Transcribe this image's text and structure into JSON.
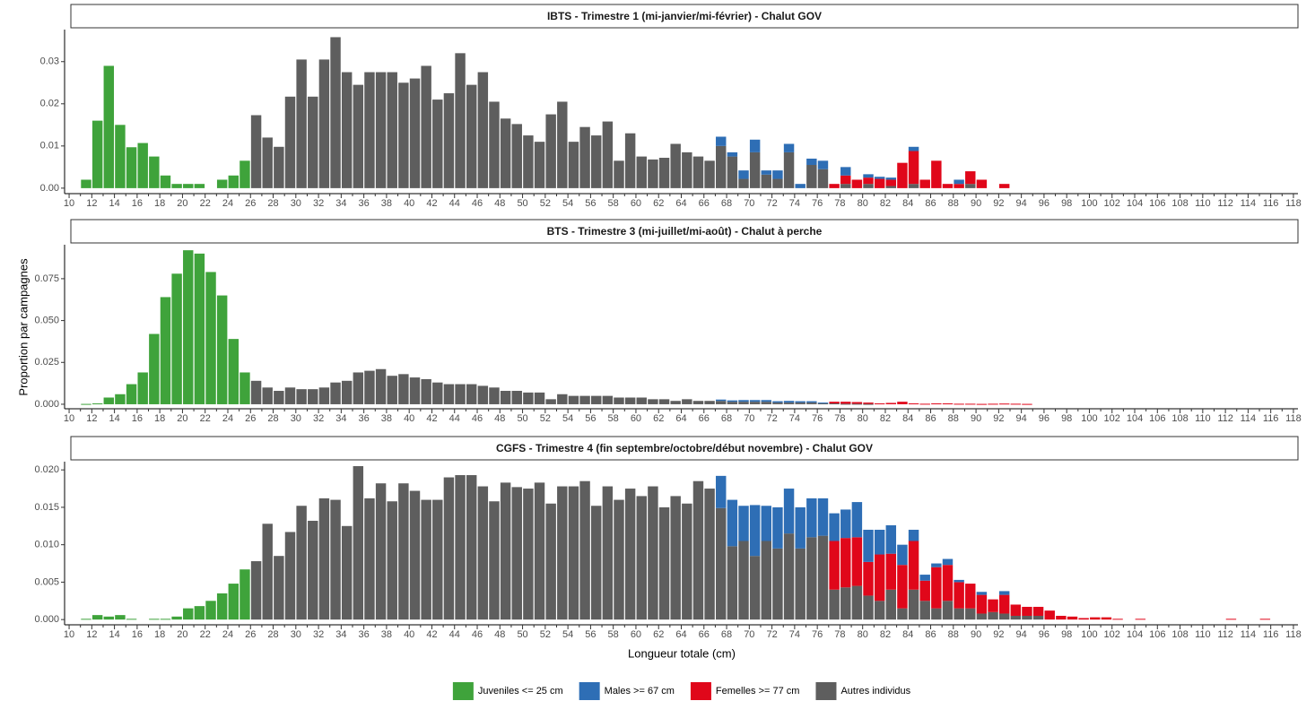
{
  "chart_data": [
    {
      "type": "bar",
      "title": "IBTS - Trimestre 1 (mi-janvier/mi-février) - Chalut GOV",
      "xlim": [
        9.6,
        118.4
      ],
      "xticks": [
        10,
        12,
        14,
        16,
        18,
        20,
        22,
        24,
        26,
        28,
        30,
        32,
        34,
        36,
        38,
        40,
        42,
        44,
        46,
        48,
        50,
        52,
        54,
        56,
        58,
        60,
        62,
        64,
        66,
        68,
        70,
        72,
        74,
        76,
        78,
        80,
        82,
        84,
        86,
        88,
        90,
        92,
        94,
        96,
        98,
        100,
        102,
        104,
        106,
        108,
        110,
        112,
        114,
        116,
        118
      ],
      "ylim": [
        -0.0013,
        0.0376
      ],
      "yticks": [
        {
          "value": 0,
          "label": "0.00"
        },
        {
          "value": 0.01,
          "label": "0.01"
        },
        {
          "value": 0.02,
          "label": "0.02"
        },
        {
          "value": 0.03,
          "label": "0.03"
        }
      ],
      "series": [
        {
          "color": "#3fa33b",
          "x": [
            11,
            12,
            13,
            14,
            15,
            16,
            17,
            18,
            19,
            20,
            21,
            22,
            23,
            24,
            25
          ],
          "values": [
            0.002,
            0.016,
            0.029,
            0.015,
            0.0097,
            0.0107,
            0.0075,
            0.003,
            0.001,
            0.001,
            0.001,
            0,
            0.002,
            0.003,
            0.0065
          ]
        },
        {
          "color": "#2e6eb5",
          "x": [
            67,
            68,
            69,
            70,
            71,
            72,
            73,
            74,
            75,
            76,
            78,
            80,
            81,
            82,
            84,
            88
          ],
          "values": [
            0.0022,
            0.001,
            0.002,
            0.003,
            0.001,
            0.002,
            0.002,
            0.001,
            0.0015,
            0.002,
            0.002,
            0.0008,
            0.0005,
            0.0005,
            0.001,
            0.001
          ]
        },
        {
          "color": "#e0071a",
          "x": [
            77,
            78,
            79,
            80,
            81,
            82,
            83,
            84,
            85,
            86,
            87,
            88,
            89,
            90,
            92
          ],
          "values": [
            0.001,
            0.002,
            0.002,
            0.0015,
            0.0022,
            0.0015,
            0.006,
            0.0078,
            0.002,
            0.0065,
            0.001,
            0.001,
            0.003,
            0.002,
            0.001
          ]
        },
        {
          "color": "#5e5e5e",
          "x": [
            26,
            27,
            28,
            29,
            30,
            31,
            32,
            33,
            34,
            35,
            36,
            37,
            38,
            39,
            40,
            41,
            42,
            43,
            44,
            45,
            46,
            47,
            48,
            49,
            50,
            51,
            52,
            53,
            54,
            55,
            56,
            57,
            58,
            59,
            60,
            61,
            62,
            63,
            64,
            65,
            66,
            67,
            68,
            69,
            70,
            71,
            72,
            73,
            74,
            75,
            76,
            77,
            78,
            79,
            80,
            81,
            82,
            83,
            84,
            85,
            86,
            87,
            88,
            89,
            90
          ],
          "values": [
            0.0173,
            0.012,
            0.0098,
            0.0217,
            0.0305,
            0.0217,
            0.0305,
            0.0358,
            0.0275,
            0.0245,
            0.0275,
            0.0275,
            0.0275,
            0.025,
            0.026,
            0.029,
            0.021,
            0.0225,
            0.032,
            0.0245,
            0.0275,
            0.0205,
            0.0165,
            0.0152,
            0.0125,
            0.011,
            0.0175,
            0.0205,
            0.011,
            0.0145,
            0.0125,
            0.0158,
            0.0065,
            0.013,
            0.0075,
            0.0068,
            0.0072,
            0.0105,
            0.0085,
            0.0075,
            0.0065,
            0.01,
            0.0075,
            0.0022,
            0.0085,
            0.0032,
            0.0022,
            0.0085,
            0,
            0.0055,
            0.0045,
            0,
            0.001,
            0,
            0.001,
            0,
            0.0005,
            0,
            0.001,
            0,
            0,
            0,
            0,
            0.001,
            0
          ]
        }
      ]
    },
    {
      "type": "bar",
      "title": "BTS - Trimestre 3 (mi-juillet/mi-août) - Chalut à perche",
      "y_label": "Proportion par campagnes",
      "xlim": [
        9.6,
        118.4
      ],
      "xticks": [
        10,
        12,
        14,
        16,
        18,
        20,
        22,
        24,
        26,
        28,
        30,
        32,
        34,
        36,
        38,
        40,
        42,
        44,
        46,
        48,
        50,
        52,
        54,
        56,
        58,
        60,
        62,
        64,
        66,
        68,
        70,
        72,
        74,
        76,
        78,
        80,
        82,
        84,
        86,
        88,
        90,
        92,
        94,
        96,
        98,
        100,
        102,
        104,
        106,
        108,
        110,
        112,
        114,
        116,
        118
      ],
      "ylim": [
        -0.0027,
        0.0953
      ],
      "yticks": [
        {
          "value": 0,
          "label": "0.000"
        },
        {
          "value": 0.025,
          "label": "0.025"
        },
        {
          "value": 0.05,
          "label": "0.050"
        },
        {
          "value": 0.075,
          "label": "0.075"
        }
      ],
      "series": [
        {
          "color": "#3fa33b",
          "x": [
            11,
            12,
            13,
            14,
            15,
            16,
            17,
            18,
            19,
            20,
            21,
            22,
            23,
            24,
            25
          ],
          "values": [
            0.0002,
            0.0005,
            0.004,
            0.006,
            0.012,
            0.019,
            0.042,
            0.064,
            0.078,
            0.092,
            0.09,
            0.079,
            0.065,
            0.039,
            0.019
          ]
        },
        {
          "color": "#2e6eb5",
          "x": [
            67,
            68,
            69,
            70,
            71,
            72,
            73,
            74,
            75,
            76
          ],
          "values": [
            0.0008,
            0.0008,
            0.001,
            0.001,
            0.001,
            0.0008,
            0.001,
            0.0008,
            0.0008,
            0.0005
          ]
        },
        {
          "color": "#e0071a",
          "x": [
            77,
            78,
            79,
            80,
            81,
            82,
            83,
            84,
            85,
            86,
            87,
            88,
            89,
            90,
            91,
            92,
            93,
            94
          ],
          "values": [
            0.001,
            0.0012,
            0.001,
            0.0008,
            0.0005,
            0.0008,
            0.0015,
            0.0005,
            0.0003,
            0.0005,
            0.0005,
            0.0003,
            0.0003,
            0.0002,
            0.0003,
            0.0004,
            0.0003,
            0.0002
          ]
        },
        {
          "color": "#5e5e5e",
          "x": [
            26,
            27,
            28,
            29,
            30,
            31,
            32,
            33,
            34,
            35,
            36,
            37,
            38,
            39,
            40,
            41,
            42,
            43,
            44,
            45,
            46,
            47,
            48,
            49,
            50,
            51,
            52,
            53,
            54,
            55,
            56,
            57,
            58,
            59,
            60,
            61,
            62,
            63,
            64,
            65,
            66,
            67,
            68,
            69,
            70,
            71,
            72,
            73,
            74,
            75,
            76,
            77,
            78,
            79,
            80
          ],
          "values": [
            0.014,
            0.01,
            0.008,
            0.01,
            0.009,
            0.009,
            0.01,
            0.013,
            0.014,
            0.019,
            0.02,
            0.021,
            0.017,
            0.018,
            0.016,
            0.015,
            0.013,
            0.012,
            0.012,
            0.012,
            0.011,
            0.01,
            0.008,
            0.008,
            0.007,
            0.007,
            0.003,
            0.006,
            0.005,
            0.005,
            0.005,
            0.005,
            0.004,
            0.004,
            0.004,
            0.003,
            0.003,
            0.002,
            0.003,
            0.002,
            0.002,
            0.002,
            0.0015,
            0.0015,
            0.0015,
            0.0015,
            0.001,
            0.001,
            0.001,
            0.001,
            0.0005,
            0.0005,
            0.0003,
            0.0003,
            0.0002
          ]
        }
      ]
    },
    {
      "type": "bar",
      "title": "CGFS - Trimestre 4 (fin septembre/octobre/début novembre) - Chalut GOV",
      "x_label": "Longueur totale (cm)",
      "xlim": [
        9.6,
        118.4
      ],
      "xticks": [
        10,
        12,
        14,
        16,
        18,
        20,
        22,
        24,
        26,
        28,
        30,
        32,
        34,
        36,
        38,
        40,
        42,
        44,
        46,
        48,
        50,
        52,
        54,
        56,
        58,
        60,
        62,
        64,
        66,
        68,
        70,
        72,
        74,
        76,
        78,
        80,
        82,
        84,
        86,
        88,
        90,
        92,
        94,
        96,
        98,
        100,
        102,
        104,
        106,
        108,
        110,
        112,
        114,
        116,
        118
      ],
      "ylim": [
        -0.0007,
        0.0211
      ],
      "yticks": [
        {
          "value": 0,
          "label": "0.000"
        },
        {
          "value": 0.005,
          "label": "0.005"
        },
        {
          "value": 0.01,
          "label": "0.010"
        },
        {
          "value": 0.015,
          "label": "0.015"
        },
        {
          "value": 0.02,
          "label": "0.020"
        }
      ],
      "series": [
        {
          "name": "Juveniles <= 25 cm",
          "color": "#3fa33b",
          "x": [
            11,
            12,
            13,
            14,
            15,
            16,
            17,
            18,
            19,
            20,
            21,
            22,
            23,
            24,
            25
          ],
          "values": [
            0.0001,
            0.0006,
            0.0004,
            0.0006,
            0.0001,
            0,
            0.0001,
            0.0001,
            0.0004,
            0.0015,
            0.0018,
            0.0025,
            0.0035,
            0.0048,
            0.0067
          ]
        },
        {
          "name": "Males >= 67 cm",
          "color": "#2e6eb5",
          "x": [
            67,
            68,
            69,
            70,
            71,
            72,
            73,
            74,
            75,
            76,
            77,
            78,
            79,
            80,
            81,
            82,
            83,
            84,
            85,
            86,
            87,
            88,
            89,
            90,
            91,
            92
          ],
          "values": [
            0.0043,
            0.0062,
            0.0047,
            0.0068,
            0.0047,
            0.0055,
            0.006,
            0.0055,
            0.0052,
            0.005,
            0.0037,
            0.0038,
            0.0047,
            0.0043,
            0.0033,
            0.0038,
            0.0027,
            0.0015,
            0.0008,
            0.0005,
            0.0008,
            0.0003,
            0,
            0.0004,
            0,
            0.0005
          ]
        },
        {
          "name": "Femelles >= 77 cm",
          "color": "#e0071a",
          "x": [
            77,
            78,
            79,
            80,
            81,
            82,
            83,
            84,
            85,
            86,
            87,
            88,
            89,
            90,
            91,
            92,
            93,
            94,
            95,
            96,
            97,
            98,
            99,
            100,
            101,
            102,
            104,
            112,
            115
          ],
          "values": [
            0.0065,
            0.0066,
            0.0065,
            0.0045,
            0.0062,
            0.0048,
            0.0058,
            0.0065,
            0.0027,
            0.0055,
            0.0048,
            0.0035,
            0.0033,
            0.0025,
            0.0017,
            0.0025,
            0.0015,
            0.0012,
            0.0012,
            0.0012,
            0.0005,
            0.0004,
            0.0002,
            0.0003,
            0.0003,
            0.0001,
            0.0001,
            0.0001,
            0.0001
          ]
        },
        {
          "name": "Autres individus",
          "color": "#5e5e5e",
          "x": [
            26,
            27,
            28,
            29,
            30,
            31,
            32,
            33,
            34,
            35,
            36,
            37,
            38,
            39,
            40,
            41,
            42,
            43,
            44,
            45,
            46,
            47,
            48,
            49,
            50,
            51,
            52,
            53,
            54,
            55,
            56,
            57,
            58,
            59,
            60,
            61,
            62,
            63,
            64,
            65,
            66,
            67,
            68,
            69,
            70,
            71,
            72,
            73,
            74,
            75,
            76,
            77,
            78,
            79,
            80,
            81,
            82,
            83,
            84,
            85,
            86,
            87,
            88,
            89,
            90,
            91,
            92,
            93,
            94,
            95
          ],
          "values": [
            0.0078,
            0.0128,
            0.0085,
            0.0117,
            0.0152,
            0.0132,
            0.0162,
            0.016,
            0.0125,
            0.0205,
            0.0162,
            0.0182,
            0.0158,
            0.0182,
            0.0172,
            0.016,
            0.016,
            0.019,
            0.0193,
            0.0193,
            0.0178,
            0.0158,
            0.0183,
            0.0177,
            0.0175,
            0.0183,
            0.0155,
            0.0178,
            0.0178,
            0.0185,
            0.0152,
            0.0178,
            0.016,
            0.0175,
            0.0165,
            0.0178,
            0.015,
            0.0165,
            0.0155,
            0.0185,
            0.0175,
            0.0149,
            0.0098,
            0.0105,
            0.0085,
            0.0105,
            0.0095,
            0.0115,
            0.0095,
            0.011,
            0.0112,
            0.004,
            0.0043,
            0.0045,
            0.0032,
            0.0025,
            0.004,
            0.0015,
            0.004,
            0.0025,
            0.0015,
            0.0025,
            0.0015,
            0.0015,
            0.0008,
            0.001,
            0.0008,
            0.0005,
            0.0005,
            0.0005
          ]
        }
      ]
    }
  ]
}
